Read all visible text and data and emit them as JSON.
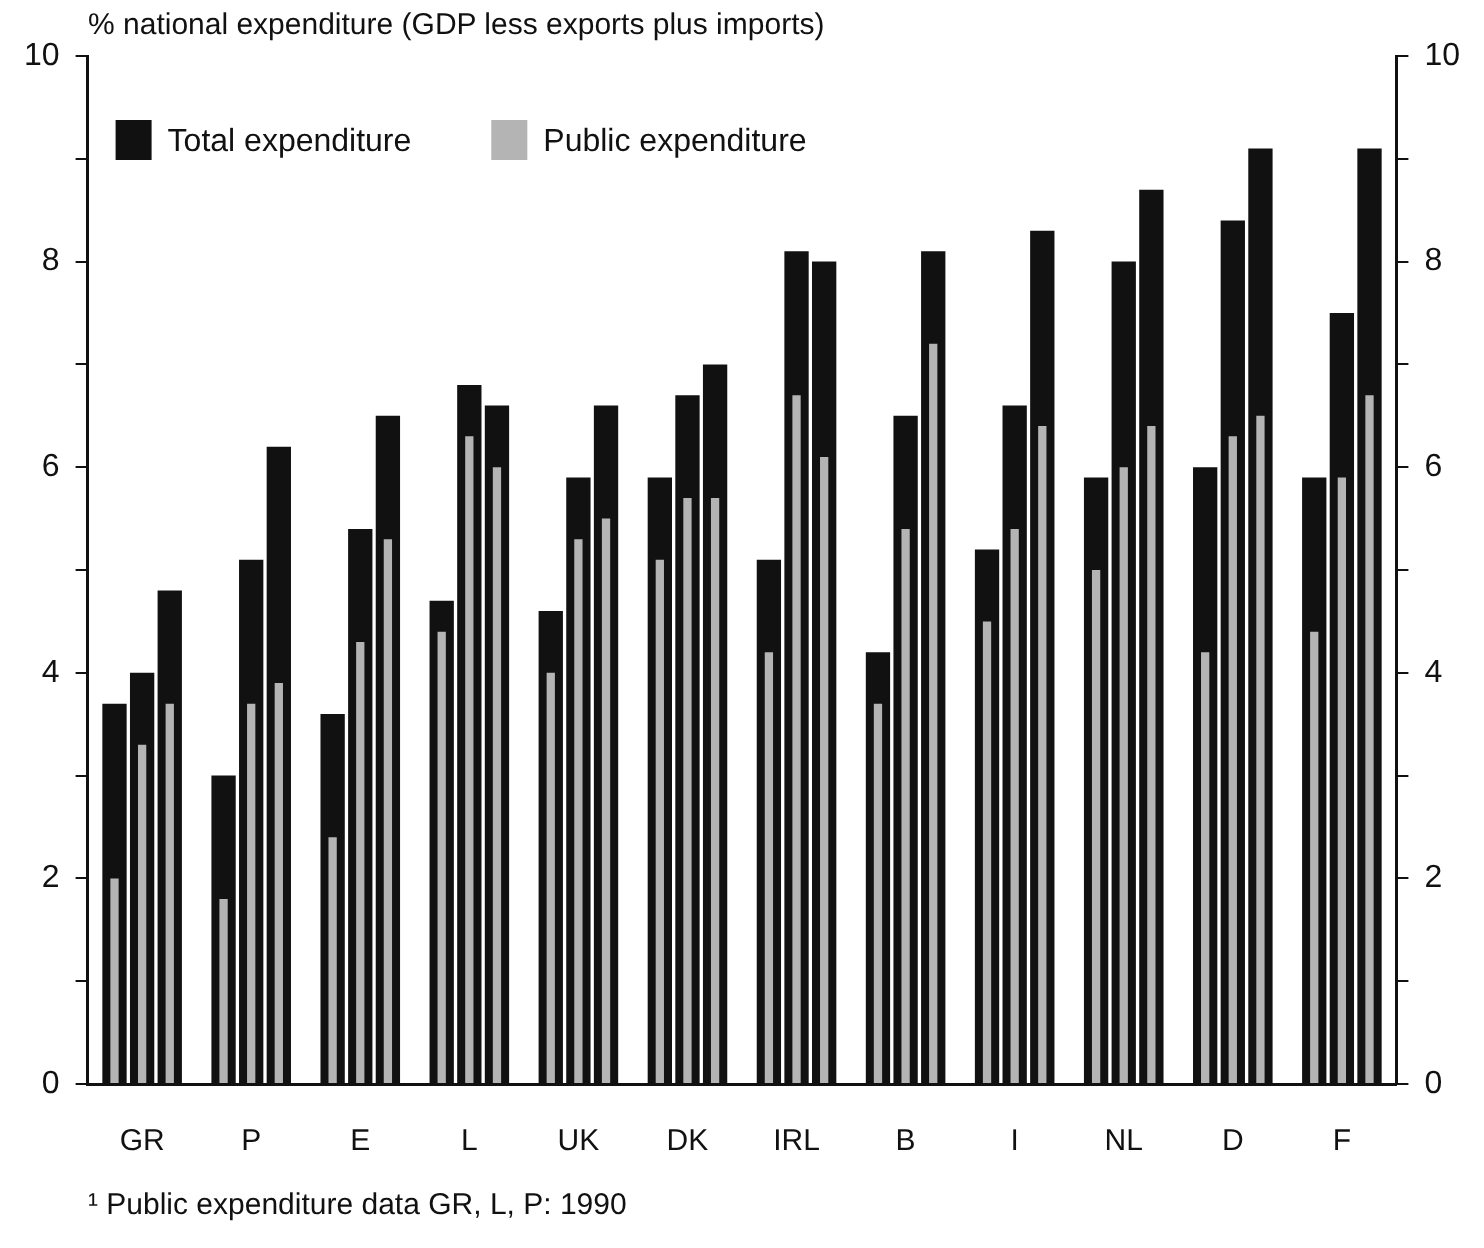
{
  "chart_data": {
    "type": "bar",
    "ylabel": "% national expenditure (GDP less exports plus imports)",
    "categories": [
      "GR",
      "P",
      "E",
      "L",
      "UK",
      "DK",
      "IRL",
      "B",
      "I",
      "NL",
      "D",
      "F"
    ],
    "series": [
      {
        "name": "Total expenditure",
        "color": "#111111",
        "values": [
          3.7,
          3.0,
          3.6,
          4.7,
          4.6,
          5.9,
          5.1,
          4.2,
          5.2,
          5.9,
          6.0,
          5.9
        ]
      },
      {
        "color": "#111111",
        "values": [
          4.0,
          5.1,
          5.4,
          6.8,
          5.9,
          6.7,
          8.1,
          6.5,
          6.6,
          8.0,
          8.4,
          7.5
        ]
      },
      {
        "color": "#111111",
        "values": [
          4.8,
          6.2,
          6.5,
          6.6,
          6.6,
          7.0,
          8.0,
          8.1,
          8.3,
          8.7,
          9.1,
          9.1
        ]
      },
      {
        "name": "Public expenditure",
        "color": "#b4b4b4",
        "values": [
          2.0,
          1.8,
          2.4,
          4.4,
          4.0,
          5.1,
          4.2,
          3.7,
          4.5,
          5.0,
          4.2,
          4.4
        ]
      },
      {
        "color": "#b4b4b4",
        "values": [
          3.3,
          3.7,
          4.3,
          6.3,
          5.3,
          5.7,
          6.7,
          5.4,
          5.4,
          6.0,
          6.3,
          5.9
        ]
      },
      {
        "color": "#b4b4b4",
        "values": [
          3.7,
          3.9,
          5.3,
          6.0,
          5.5,
          5.7,
          6.1,
          7.2,
          6.4,
          6.4,
          6.5,
          6.7
        ]
      }
    ],
    "ylim": [
      0,
      10
    ],
    "yticks": [
      0,
      {
        "value": 1,
        "label": null
      },
      2,
      {
        "value": 3,
        "label": null
      },
      4,
      {
        "value": 5,
        "label": null
      },
      6,
      {
        "value": 7,
        "label": null
      },
      8,
      {
        "value": 9,
        "label": null
      },
      10
    ],
    "y2lim": [
      0,
      10
    ],
    "y2ticks": [
      0,
      {
        "value": 1,
        "label": null
      },
      2,
      {
        "value": 3,
        "label": null
      },
      4,
      {
        "value": 5,
        "label": null
      },
      6,
      {
        "value": 7,
        "label": null
      },
      8,
      {
        "value": 9,
        "label": null
      },
      10
    ],
    "legend": "top left",
    "grid": false,
    "annotations": [
      "¹ Public expenditure data GR, L, P: 1990"
    ]
  }
}
